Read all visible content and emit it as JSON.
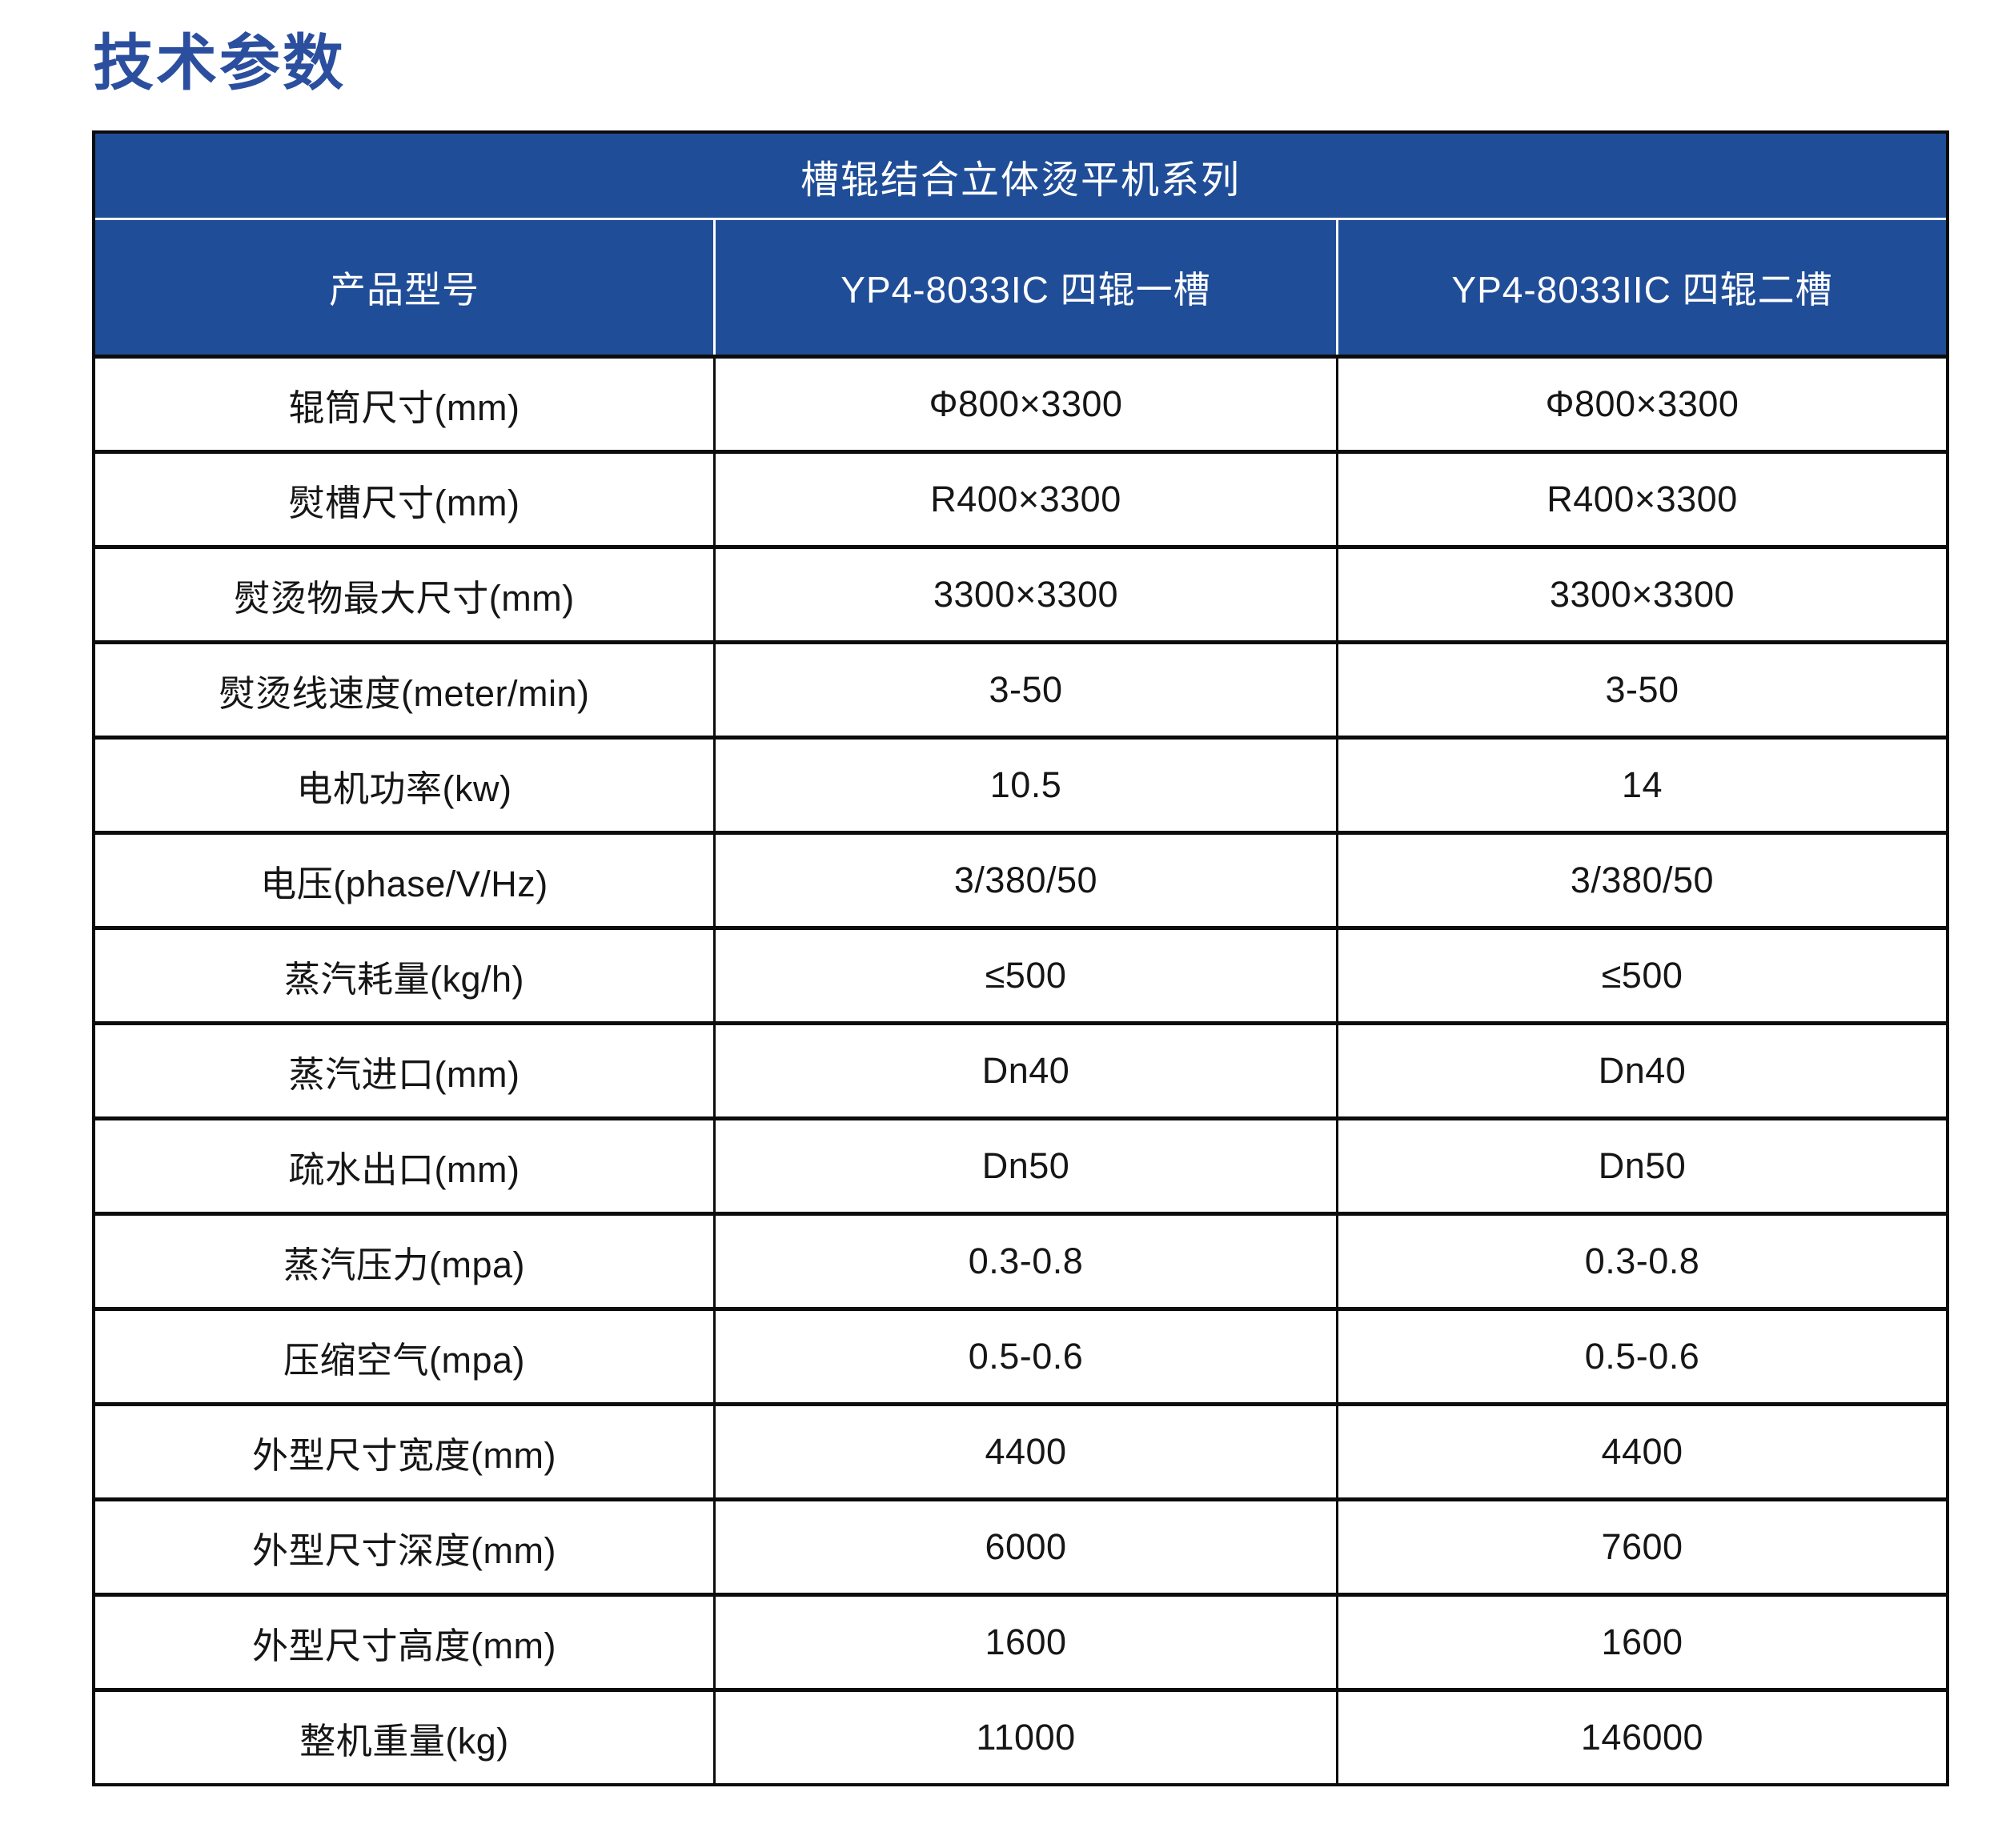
{
  "page": {
    "title": "技术参数"
  },
  "colors": {
    "brand_blue_header": "#204d98",
    "title_blue": "#2b4f9e",
    "border_black": "#0c0c0c",
    "header_text": "#ffffff",
    "body_text": "#161616",
    "page_background": "#ffffff"
  },
  "table": {
    "series_title": "槽辊结合立体烫平机系列",
    "columns": [
      "产品型号",
      "YP4-8033IC 四辊一槽",
      "YP4-8033IIC 四辊二槽"
    ],
    "rows": [
      {
        "label": "辊筒尺寸(mm)",
        "col1": "Φ800×3300",
        "col2": "Φ800×3300"
      },
      {
        "label": "熨槽尺寸(mm)",
        "col1": "R400×3300",
        "col2": "R400×3300"
      },
      {
        "label": "熨烫物最大尺寸(mm)",
        "col1": "3300×3300",
        "col2": "3300×3300"
      },
      {
        "label": "熨烫线速度(meter/min)",
        "col1": "3-50",
        "col2": "3-50"
      },
      {
        "label": "电机功率(kw)",
        "col1": "10.5",
        "col2": "14"
      },
      {
        "label": "电压(phase/V/Hz)",
        "col1": "3/380/50",
        "col2": "3/380/50"
      },
      {
        "label": "蒸汽耗量(kg/h)",
        "col1": "≤500",
        "col2": "≤500"
      },
      {
        "label": "蒸汽进口(mm)",
        "col1": "Dn40",
        "col2": "Dn40"
      },
      {
        "label": "疏水出口(mm)",
        "col1": "Dn50",
        "col2": "Dn50"
      },
      {
        "label": "蒸汽压力(mpa)",
        "col1": "0.3-0.8",
        "col2": "0.3-0.8"
      },
      {
        "label": "压缩空气(mpa)",
        "col1": "0.5-0.6",
        "col2": "0.5-0.6"
      },
      {
        "label": "外型尺寸宽度(mm)",
        "col1": "4400",
        "col2": "4400"
      },
      {
        "label": "外型尺寸深度(mm)",
        "col1": "6000",
        "col2": "7600"
      },
      {
        "label": "外型尺寸高度(mm)",
        "col1": "1600",
        "col2": "1600"
      },
      {
        "label": "整机重量(kg)",
        "col1": "11000",
        "col2": "146000"
      }
    ]
  }
}
